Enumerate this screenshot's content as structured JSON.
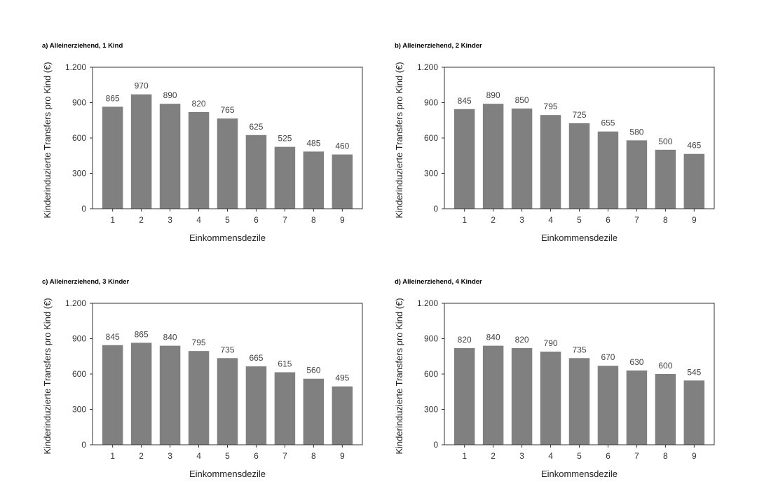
{
  "chart_data": [
    {
      "type": "bar",
      "title": "a) Alleinerziehend, 1 Kind",
      "xlabel": "Einkommensdezile",
      "ylabel": "Kinderinduzierte Transfers pro Kind (€)",
      "categories": [
        "1",
        "2",
        "3",
        "4",
        "5",
        "6",
        "7",
        "8",
        "9"
      ],
      "values": [
        865,
        970,
        890,
        820,
        765,
        625,
        525,
        485,
        460
      ],
      "ylim": [
        0,
        1200
      ],
      "yticks": [
        0,
        300,
        600,
        900,
        1200
      ],
      "ytick_labels": [
        "0",
        "300",
        "600",
        "900",
        "1.200"
      ],
      "bar_color": "#808080",
      "grid": false
    },
    {
      "type": "bar",
      "title": "b) Alleinerziehend, 2 Kinder",
      "xlabel": "Einkommensdezile",
      "ylabel": "Kinderinduzierte Transfers pro Kind (€)",
      "categories": [
        "1",
        "2",
        "3",
        "4",
        "5",
        "6",
        "7",
        "8",
        "9"
      ],
      "values": [
        845,
        890,
        850,
        795,
        725,
        655,
        580,
        500,
        465
      ],
      "ylim": [
        0,
        1200
      ],
      "yticks": [
        0,
        300,
        600,
        900,
        1200
      ],
      "ytick_labels": [
        "0",
        "300",
        "600",
        "900",
        "1.200"
      ],
      "bar_color": "#808080",
      "grid": false
    },
    {
      "type": "bar",
      "title": "c) Alleinerziehend, 3 Kinder",
      "xlabel": "Einkommensdezile",
      "ylabel": "Kinderinduzierte Transfers pro Kind (€)",
      "categories": [
        "1",
        "2",
        "3",
        "4",
        "5",
        "6",
        "7",
        "8",
        "9"
      ],
      "values": [
        845,
        865,
        840,
        795,
        735,
        665,
        615,
        560,
        495
      ],
      "ylim": [
        0,
        1200
      ],
      "yticks": [
        0,
        300,
        600,
        900,
        1200
      ],
      "ytick_labels": [
        "0",
        "300",
        "600",
        "900",
        "1.200"
      ],
      "bar_color": "#808080",
      "grid": false
    },
    {
      "type": "bar",
      "title": "d) Alleinerziehend, 4 Kinder",
      "xlabel": "Einkommensdezile",
      "ylabel": "Kinderinduzierte Transfers pro Kind (€)",
      "categories": [
        "1",
        "2",
        "3",
        "4",
        "5",
        "6",
        "7",
        "8",
        "9"
      ],
      "values": [
        820,
        840,
        820,
        790,
        735,
        670,
        630,
        600,
        545
      ],
      "ylim": [
        0,
        1200
      ],
      "yticks": [
        0,
        300,
        600,
        900,
        1200
      ],
      "ytick_labels": [
        "0",
        "300",
        "600",
        "900",
        "1.200"
      ],
      "bar_color": "#808080",
      "grid": false
    }
  ]
}
